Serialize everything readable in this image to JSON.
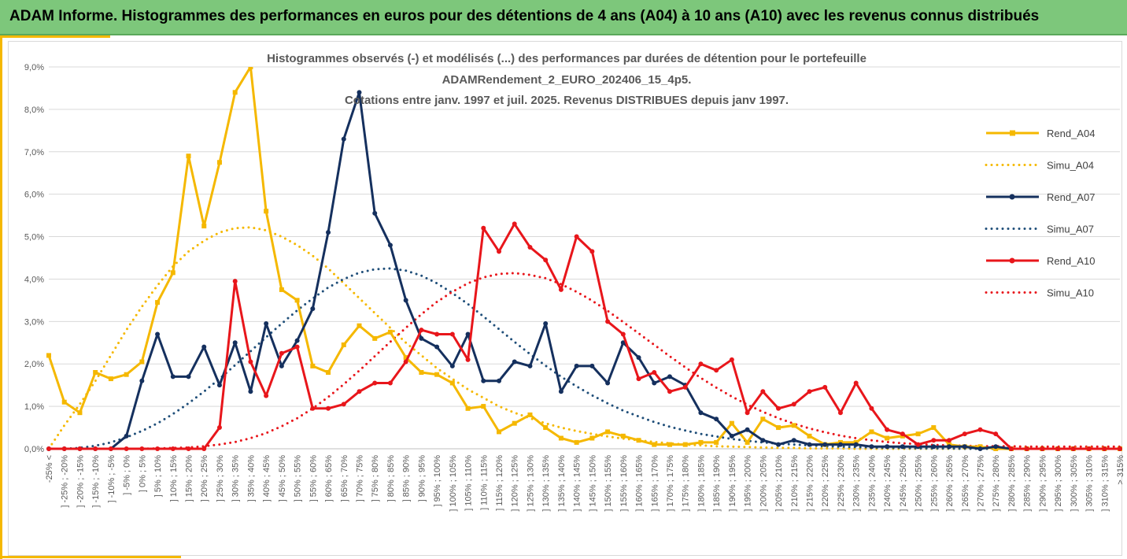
{
  "banner": {
    "title": "ADAM Informe. Histogrammes des performances en euros pour des détentions de 4 ans (A04) à 10 ans (A10) avec les revenus connus distribués",
    "background": "#7dc77b",
    "accent_color": "#f5b800"
  },
  "chart_data": {
    "type": "line",
    "title_lines": [
      "Histogrammes observés (-) et modélisés (...) des performances par durées de détention pour le portefeuille",
      "ADAMRendement_2_EURO_202406_15_4p5.",
      "Cotations entre janv. 1997 et juil. 2025. Revenus DISTRIBUES depuis janv 1997."
    ],
    "xlabel": "",
    "ylabel": "",
    "ylim": [
      0,
      9
    ],
    "y_ticks": [
      "0,0%",
      "1,0%",
      "2,0%",
      "3,0%",
      "4,0%",
      "5,0%",
      "6,0%",
      "7,0%",
      "8,0%",
      "9,0%"
    ],
    "grid": "horizontal",
    "legend_position": "right",
    "categories": [
      "-25% <",
      "] -25% ; -20%",
      "] -20% ; -15%",
      "] -15% ; -10%",
      "] -10% ; -5%",
      "] -5% ; 0%",
      "] 0% ; 5%",
      "] 5% ; 10%",
      "] 10% ; 15%",
      "] 15% ; 20%",
      "] 20% ; 25%",
      "] 25% ; 30%",
      "] 30% ; 35%",
      "] 35% ; 40%",
      "] 40% ; 45%",
      "] 45% ; 50%",
      "] 50% ; 55%",
      "] 55% ; 60%",
      "] 60% ; 65%",
      "] 65% ; 70%",
      "] 70% ; 75%",
      "] 75% ; 80%",
      "] 80% ; 85%",
      "] 85% ; 90%",
      "] 90% ; 95%",
      "] 95% ; 100%",
      "] 100% ; 105%",
      "] 105% ; 110%",
      "] 110% ; 115%",
      "] 115% ; 120%",
      "] 120% ; 125%",
      "] 125% ; 130%",
      "] 130% ; 135%",
      "] 135% ; 140%",
      "] 140% ; 145%",
      "] 145% ; 150%",
      "] 150% ; 155%",
      "] 155% ; 160%",
      "] 160% ; 165%",
      "] 165% ; 170%",
      "] 170% ; 175%",
      "] 175% ; 180%",
      "] 180% ; 185%",
      "] 185% ; 190%",
      "] 190% ; 195%",
      "] 195% ; 200%",
      "] 200% ; 205%",
      "] 205% ; 210%",
      "] 210% ; 215%",
      "] 215% ; 220%",
      "] 220% ; 225%",
      "] 225% ; 230%",
      "] 230% ; 235%",
      "] 235% ; 240%",
      "] 240% ; 245%",
      "] 245% ; 250%",
      "] 250% ; 255%",
      "] 255% ; 260%",
      "] 260% ; 265%",
      "] 265% ; 270%",
      "] 270% ; 275%",
      "] 275% ; 280%",
      "] 280% ; 285%",
      "] 285% ; 290%",
      "] 290% ; 295%",
      "] 295% ; 300%",
      "] 300% ; 305%",
      "] 305% ; 310%",
      "] 310% ; 315%",
      "> 315%"
    ],
    "series": [
      {
        "name": "Rend_A04",
        "style": "solid",
        "color": "#f5b800",
        "values": [
          2.2,
          1.1,
          0.85,
          1.8,
          1.65,
          1.75,
          2.05,
          3.45,
          4.15,
          6.9,
          5.25,
          6.75,
          8.4,
          9.5,
          5.6,
          3.75,
          3.5,
          1.95,
          1.8,
          2.45,
          2.9,
          2.6,
          2.75,
          2.15,
          1.8,
          1.75,
          1.55,
          0.95,
          1.0,
          0.4,
          0.6,
          0.8,
          0.5,
          0.25,
          0.15,
          0.25,
          0.4,
          0.3,
          0.2,
          0.1,
          0.1,
          0.1,
          0.15,
          0.15,
          0.6,
          0.15,
          0.7,
          0.5,
          0.55,
          0.3,
          0.1,
          0.15,
          0.15,
          0.4,
          0.25,
          0.3,
          0.35,
          0.5,
          0.1,
          0.05,
          0.05,
          0.0,
          0.0,
          0.0,
          0.0,
          0.0,
          0.0,
          0.0,
          0.0,
          0.0
        ]
      },
      {
        "name": "Simu_A04",
        "style": "dotted",
        "color": "#f5b800",
        "values": [
          0.0,
          0.55,
          1.05,
          1.6,
          2.2,
          2.8,
          3.35,
          3.85,
          4.3,
          4.65,
          4.9,
          5.1,
          5.2,
          5.22,
          5.15,
          5.0,
          4.8,
          4.55,
          4.25,
          3.9,
          3.55,
          3.2,
          2.85,
          2.5,
          2.2,
          1.9,
          1.65,
          1.4,
          1.2,
          1.0,
          0.85,
          0.72,
          0.6,
          0.5,
          0.42,
          0.35,
          0.29,
          0.24,
          0.2,
          0.16,
          0.13,
          0.1,
          0.08,
          0.06,
          0.05,
          0.04,
          0.03,
          0.02,
          0.02,
          0.01,
          0.01,
          0.01,
          0.0,
          0.0,
          0.0,
          0.0,
          0.0,
          0.0,
          0.0,
          0.0,
          0.0,
          0.0,
          0.0,
          0.0,
          0.0,
          0.0,
          0.0,
          0.0,
          0.0,
          0.0
        ]
      },
      {
        "name": "Rend_A07",
        "style": "solid",
        "color": "#15305e",
        "values": [
          0.0,
          0.0,
          0.0,
          0.0,
          0.0,
          0.3,
          1.6,
          2.7,
          1.7,
          1.7,
          2.4,
          1.5,
          2.5,
          1.35,
          2.95,
          1.95,
          2.55,
          3.3,
          5.1,
          7.3,
          8.4,
          5.55,
          4.8,
          3.5,
          2.6,
          2.4,
          1.95,
          2.7,
          1.6,
          1.6,
          2.05,
          1.95,
          2.95,
          1.35,
          1.95,
          1.95,
          1.55,
          2.5,
          2.15,
          1.55,
          1.7,
          1.5,
          0.85,
          0.7,
          0.3,
          0.45,
          0.2,
          0.1,
          0.2,
          0.1,
          0.1,
          0.1,
          0.1,
          0.05,
          0.05,
          0.05,
          0.05,
          0.05,
          0.05,
          0.05,
          0.0,
          0.05,
          0.0,
          0.0,
          0.0,
          0.0,
          0.0,
          0.0,
          0.0,
          0.0
        ]
      },
      {
        "name": "Simu_A07",
        "style": "dotted",
        "color": "#1f4e79",
        "values": [
          0.0,
          0.0,
          0.02,
          0.07,
          0.15,
          0.27,
          0.42,
          0.6,
          0.82,
          1.07,
          1.35,
          1.65,
          1.97,
          2.3,
          2.63,
          2.95,
          3.26,
          3.54,
          3.8,
          4.0,
          4.15,
          4.23,
          4.25,
          4.2,
          4.08,
          3.9,
          3.67,
          3.41,
          3.12,
          2.82,
          2.52,
          2.23,
          1.96,
          1.7,
          1.47,
          1.26,
          1.07,
          0.9,
          0.76,
          0.63,
          0.52,
          0.43,
          0.35,
          0.29,
          0.23,
          0.19,
          0.15,
          0.12,
          0.1,
          0.08,
          0.06,
          0.05,
          0.04,
          0.03,
          0.02,
          0.02,
          0.01,
          0.01,
          0.01,
          0.0,
          0.0,
          0.0,
          0.0,
          0.0,
          0.0,
          0.0,
          0.0,
          0.0,
          0.0,
          0.0
        ]
      },
      {
        "name": "Rend_A10",
        "style": "solid",
        "color": "#e8161b",
        "values": [
          0.0,
          0.0,
          0.0,
          0.0,
          0.0,
          0.0,
          0.0,
          0.0,
          0.0,
          0.0,
          0.0,
          0.5,
          3.95,
          2.05,
          1.25,
          2.25,
          2.4,
          0.95,
          0.95,
          1.05,
          1.35,
          1.55,
          1.55,
          2.05,
          2.8,
          2.7,
          2.7,
          2.1,
          5.2,
          4.65,
          5.3,
          4.75,
          4.45,
          3.75,
          5.0,
          4.65,
          3.0,
          2.7,
          1.65,
          1.8,
          1.35,
          1.45,
          2.0,
          1.85,
          2.1,
          0.85,
          1.35,
          0.95,
          1.05,
          1.35,
          1.45,
          0.85,
          1.55,
          0.95,
          0.45,
          0.35,
          0.1,
          0.2,
          0.2,
          0.35,
          0.45,
          0.35,
          0.0,
          0.0,
          0.0,
          0.0,
          0.0,
          0.0,
          0.0,
          0.0
        ]
      },
      {
        "name": "Simu_A10",
        "style": "dotted",
        "color": "#e8161b",
        "values": [
          0.0,
          0.0,
          0.0,
          0.0,
          0.0,
          0.0,
          0.0,
          0.01,
          0.02,
          0.03,
          0.06,
          0.1,
          0.16,
          0.25,
          0.37,
          0.53,
          0.72,
          0.95,
          1.22,
          1.52,
          1.84,
          2.18,
          2.52,
          2.85,
          3.17,
          3.46,
          3.7,
          3.9,
          4.04,
          4.12,
          4.14,
          4.1,
          4.02,
          3.88,
          3.7,
          3.49,
          3.25,
          2.99,
          2.72,
          2.45,
          2.18,
          1.92,
          1.67,
          1.44,
          1.23,
          1.04,
          0.87,
          0.72,
          0.59,
          0.48,
          0.39,
          0.31,
          0.25,
          0.2,
          0.16,
          0.13,
          0.11,
          0.09,
          0.08,
          0.07,
          0.06,
          0.06,
          0.06,
          0.05,
          0.05,
          0.05,
          0.05,
          0.05,
          0.05,
          0.05
        ]
      }
    ]
  }
}
